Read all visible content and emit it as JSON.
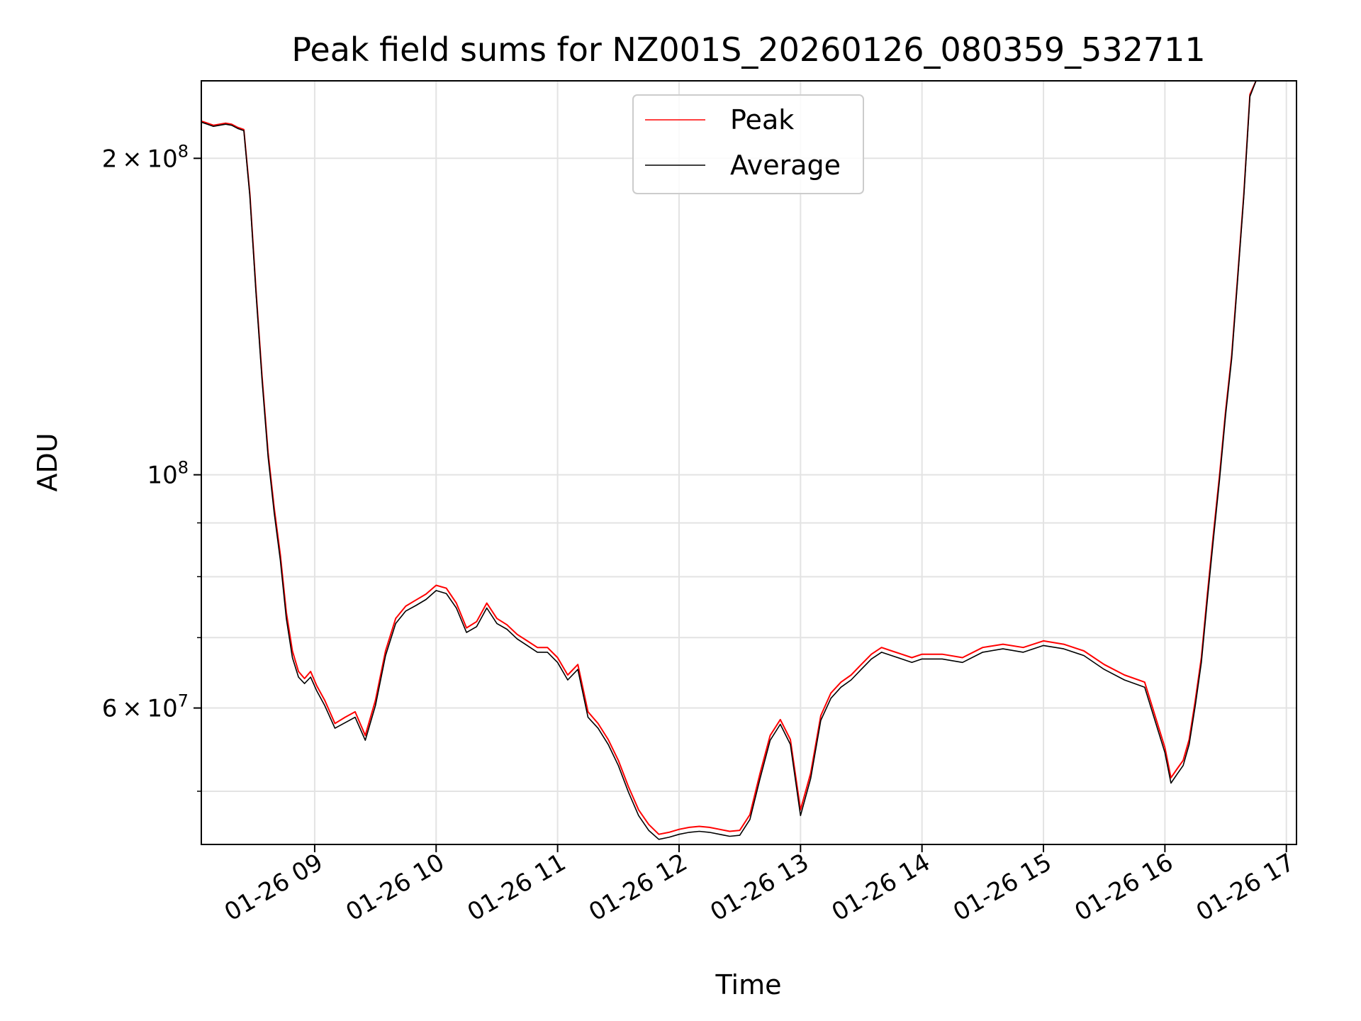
{
  "chart_data": {
    "type": "line",
    "title": "Peak field sums for NZ001S_20260126_080359_532711",
    "xlabel": "Time",
    "ylabel": "ADU",
    "yscale": "log",
    "ylim": [
      44500000,
      237000000
    ],
    "xlim": [
      "2026-01-26 08:04",
      "2026-01-26 17:05"
    ],
    "grid": true,
    "legend_position": "upper center",
    "x_ticks": [
      {
        "value": "2026-01-26 09:00",
        "label": "01-26 09"
      },
      {
        "value": "2026-01-26 10:00",
        "label": "01-26 10"
      },
      {
        "value": "2026-01-26 11:00",
        "label": "01-26 11"
      },
      {
        "value": "2026-01-26 12:00",
        "label": "01-26 12"
      },
      {
        "value": "2026-01-26 13:00",
        "label": "01-26 13"
      },
      {
        "value": "2026-01-26 14:00",
        "label": "01-26 14"
      },
      {
        "value": "2026-01-26 15:00",
        "label": "01-26 15"
      },
      {
        "value": "2026-01-26 16:00",
        "label": "01-26 16"
      },
      {
        "value": "2026-01-26 17:00",
        "label": "01-26 17"
      }
    ],
    "y_ticks": [
      {
        "value": 200000000,
        "mantissa": "2",
        "exponent": "8",
        "label": "2 × 10^8"
      },
      {
        "value": 100000000,
        "mantissa": "",
        "exponent": "8",
        "label": "10^8"
      },
      {
        "value": 60000000,
        "mantissa": "6",
        "exponent": "7",
        "label": "6 × 10^7"
      }
    ],
    "y_minor_ticks": [
      50000000,
      70000000,
      80000000,
      90000000
    ],
    "x": [
      "2026-01-26 08:04",
      "2026-01-26 08:07",
      "2026-01-26 08:10",
      "2026-01-26 08:13",
      "2026-01-26 08:16",
      "2026-01-26 08:19",
      "2026-01-26 08:22",
      "2026-01-26 08:25",
      "2026-01-26 08:28",
      "2026-01-26 08:31",
      "2026-01-26 08:34",
      "2026-01-26 08:37",
      "2026-01-26 08:40",
      "2026-01-26 08:43",
      "2026-01-26 08:46",
      "2026-01-26 08:49",
      "2026-01-26 08:52",
      "2026-01-26 08:55",
      "2026-01-26 08:58",
      "2026-01-26 09:01",
      "2026-01-26 09:05",
      "2026-01-26 09:10",
      "2026-01-26 09:15",
      "2026-01-26 09:20",
      "2026-01-26 09:25",
      "2026-01-26 09:30",
      "2026-01-26 09:35",
      "2026-01-26 09:40",
      "2026-01-26 09:45",
      "2026-01-26 09:50",
      "2026-01-26 09:55",
      "2026-01-26 10:00",
      "2026-01-26 10:05",
      "2026-01-26 10:10",
      "2026-01-26 10:15",
      "2026-01-26 10:20",
      "2026-01-26 10:25",
      "2026-01-26 10:30",
      "2026-01-26 10:35",
      "2026-01-26 10:40",
      "2026-01-26 10:45",
      "2026-01-26 10:50",
      "2026-01-26 10:55",
      "2026-01-26 11:00",
      "2026-01-26 11:05",
      "2026-01-26 11:10",
      "2026-01-26 11:15",
      "2026-01-26 11:20",
      "2026-01-26 11:25",
      "2026-01-26 11:30",
      "2026-01-26 11:35",
      "2026-01-26 11:40",
      "2026-01-26 11:45",
      "2026-01-26 11:50",
      "2026-01-26 11:55",
      "2026-01-26 12:00",
      "2026-01-26 12:05",
      "2026-01-26 12:10",
      "2026-01-26 12:15",
      "2026-01-26 12:20",
      "2026-01-26 12:25",
      "2026-01-26 12:30",
      "2026-01-26 12:35",
      "2026-01-26 12:40",
      "2026-01-26 12:45",
      "2026-01-26 12:50",
      "2026-01-26 12:55",
      "2026-01-26 13:00",
      "2026-01-26 13:05",
      "2026-01-26 13:10",
      "2026-01-26 13:15",
      "2026-01-26 13:20",
      "2026-01-26 13:25",
      "2026-01-26 13:30",
      "2026-01-26 13:35",
      "2026-01-26 13:40",
      "2026-01-26 13:45",
      "2026-01-26 13:50",
      "2026-01-26 13:55",
      "2026-01-26 14:00",
      "2026-01-26 14:10",
      "2026-01-26 14:20",
      "2026-01-26 14:30",
      "2026-01-26 14:40",
      "2026-01-26 14:50",
      "2026-01-26 15:00",
      "2026-01-26 15:10",
      "2026-01-26 15:20",
      "2026-01-26 15:30",
      "2026-01-26 15:40",
      "2026-01-26 15:50",
      "2026-01-26 16:00",
      "2026-01-26 16:03",
      "2026-01-26 16:06",
      "2026-01-26 16:09",
      "2026-01-26 16:12",
      "2026-01-26 16:15",
      "2026-01-26 16:18",
      "2026-01-26 16:21",
      "2026-01-26 16:24",
      "2026-01-26 16:27",
      "2026-01-26 16:30",
      "2026-01-26 16:33",
      "2026-01-26 16:36",
      "2026-01-26 16:39",
      "2026-01-26 16:42",
      "2026-01-26 16:45",
      "2026-01-26 16:48",
      "2026-01-26 16:51",
      "2026-01-26 16:54",
      "2026-01-26 16:57",
      "2026-01-26 17:00"
    ],
    "series": [
      {
        "name": "Peak",
        "color": "#ff0000",
        "values": [
          217000000,
          216000000,
          215000000,
          215500000,
          216000000,
          215500000,
          214000000,
          213000000,
          185000000,
          150000000,
          124000000,
          105000000,
          93000000,
          84000000,
          74000000,
          68000000,
          65000000,
          64000000,
          65000000,
          63000000,
          61000000,
          58000000,
          58800000,
          59500000,
          56500000,
          61000000,
          68000000,
          73000000,
          75000000,
          76000000,
          77000000,
          78500000,
          78000000,
          75500000,
          71500000,
          72500000,
          75500000,
          73000000,
          72000000,
          70500000,
          69500000,
          68500000,
          68500000,
          67000000,
          64500000,
          66000000,
          59500000,
          58000000,
          56000000,
          53500000,
          50500000,
          48000000,
          46500000,
          45500000,
          45700000,
          46000000,
          46200000,
          46300000,
          46200000,
          46000000,
          45800000,
          45900000,
          47500000,
          52000000,
          56500000,
          58500000,
          56000000,
          48000000,
          52000000,
          59000000,
          62000000,
          63500000,
          64500000,
          66000000,
          67500000,
          68500000,
          68000000,
          67500000,
          67000000,
          67500000,
          67500000,
          67000000,
          68500000,
          69000000,
          68500000,
          69500000,
          69000000,
          68000000,
          66000000,
          64500000,
          63500000,
          55000000,
          51500000,
          52500000,
          53500000,
          56000000,
          61000000,
          67000000,
          77000000,
          88000000,
          100000000,
          115000000,
          130000000,
          155000000,
          185000000,
          230000000,
          237000000,
          237000000,
          237000000,
          237000000,
          237000000,
          237000000
        ]
      },
      {
        "name": "Average",
        "color": "#000000",
        "values": [
          216500000,
          215500000,
          214500000,
          215000000,
          215500000,
          215000000,
          213500000,
          212500000,
          184000000,
          149000000,
          123000000,
          104000000,
          92000000,
          83000000,
          73000000,
          67000000,
          64200000,
          63300000,
          64200000,
          62300000,
          60300000,
          57400000,
          58100000,
          58800000,
          55900000,
          60300000,
          67300000,
          72200000,
          74200000,
          75100000,
          76100000,
          77600000,
          77100000,
          74700000,
          70800000,
          71700000,
          74700000,
          72200000,
          71300000,
          69800000,
          68800000,
          67800000,
          67800000,
          66300000,
          63800000,
          65300000,
          58800000,
          57400000,
          55400000,
          52900000,
          49900000,
          47400000,
          45900000,
          45000000,
          45200000,
          45500000,
          45700000,
          45800000,
          45700000,
          45500000,
          45300000,
          45400000,
          47000000,
          51400000,
          55900000,
          57900000,
          55400000,
          47400000,
          51400000,
          58400000,
          61300000,
          62800000,
          63800000,
          65300000,
          66800000,
          67800000,
          67300000,
          66800000,
          66300000,
          66800000,
          66800000,
          66300000,
          67800000,
          68300000,
          67800000,
          68800000,
          68300000,
          67300000,
          65300000,
          63800000,
          62800000,
          54400000,
          50900000,
          51900000,
          52900000,
          55400000,
          60300000,
          66300000,
          76100000,
          87000000,
          99000000,
          114000000,
          129000000,
          154000000,
          184000000,
          229000000,
          237000000,
          237000000,
          237000000,
          237000000,
          237000000,
          237000000
        ]
      }
    ]
  }
}
